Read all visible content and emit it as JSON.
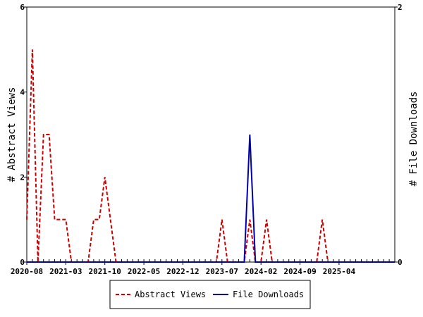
{
  "chart_data": {
    "type": "line",
    "title": "",
    "xlabel": "",
    "ylabel_left": "# Abstract Views",
    "ylabel_right": "# File Downloads",
    "x_tick_labels": [
      "2020-08",
      "2021-03",
      "2021-10",
      "2022-05",
      "2022-12",
      "2023-07",
      "2024-02",
      "2024-09",
      "2025-04"
    ],
    "xlim": [
      "2020-08",
      "2026-02"
    ],
    "ylim_left": [
      0,
      6
    ],
    "yticks_left": [
      0,
      2,
      4,
      6
    ],
    "ylim_right": [
      0,
      2
    ],
    "yticks_right": [
      0,
      2
    ],
    "grid": false,
    "legend_position": "bottom-center",
    "series": [
      {
        "name": "Abstract Views",
        "axis": "left",
        "color": "#cc0000",
        "dash": "dashed",
        "x": [
          "2020-08",
          "2020-09",
          "2020-10",
          "2020-11",
          "2020-12",
          "2021-01",
          "2021-02",
          "2021-03",
          "2021-04",
          "2021-05",
          "2021-06",
          "2021-07",
          "2021-08",
          "2021-09",
          "2021-10",
          "2021-11",
          "2021-12",
          "2022-01",
          "2022-02",
          "2022-03",
          "2022-04",
          "2022-05",
          "2022-06",
          "2022-07",
          "2022-08",
          "2022-09",
          "2022-10",
          "2022-11",
          "2022-12",
          "2023-01",
          "2023-02",
          "2023-03",
          "2023-04",
          "2023-05",
          "2023-06",
          "2023-07",
          "2023-08",
          "2023-09",
          "2023-10",
          "2023-11",
          "2023-12",
          "2024-01",
          "2024-02",
          "2024-03",
          "2024-04",
          "2024-05",
          "2024-06",
          "2024-07",
          "2024-08",
          "2024-09",
          "2024-10",
          "2024-11",
          "2024-12",
          "2025-01",
          "2025-02",
          "2025-03",
          "2025-04",
          "2025-05",
          "2025-06",
          "2025-07",
          "2025-08",
          "2025-09",
          "2025-10",
          "2025-11",
          "2025-12",
          "2026-01",
          "2026-02"
        ],
        "values": [
          1,
          5,
          0,
          3,
          3,
          1,
          1,
          1,
          0,
          0,
          0,
          0,
          1,
          1,
          2,
          1,
          0,
          0,
          0,
          0,
          0,
          0,
          0,
          0,
          0,
          0,
          0,
          0,
          0,
          0,
          0,
          0,
          0,
          0,
          0,
          1,
          0,
          0,
          0,
          0,
          1,
          0,
          0,
          1,
          0,
          0,
          0,
          0,
          0,
          0,
          0,
          0,
          0,
          1,
          0,
          0,
          0,
          0,
          0,
          0,
          0,
          0,
          0,
          0,
          0,
          0,
          0
        ]
      },
      {
        "name": "File Downloads",
        "axis": "right",
        "color": "#0000aa",
        "dash": "solid",
        "x": [
          "2020-08",
          "2020-09",
          "2020-10",
          "2020-11",
          "2020-12",
          "2021-01",
          "2021-02",
          "2021-03",
          "2021-04",
          "2021-05",
          "2021-06",
          "2021-07",
          "2021-08",
          "2021-09",
          "2021-10",
          "2021-11",
          "2021-12",
          "2022-01",
          "2022-02",
          "2022-03",
          "2022-04",
          "2022-05",
          "2022-06",
          "2022-07",
          "2022-08",
          "2022-09",
          "2022-10",
          "2022-11",
          "2022-12",
          "2023-01",
          "2023-02",
          "2023-03",
          "2023-04",
          "2023-05",
          "2023-06",
          "2023-07",
          "2023-08",
          "2023-09",
          "2023-10",
          "2023-11",
          "2023-12",
          "2024-01",
          "2024-02",
          "2024-03",
          "2024-04",
          "2024-05",
          "2024-06",
          "2024-07",
          "2024-08",
          "2024-09",
          "2024-10",
          "2024-11",
          "2024-12",
          "2025-01",
          "2025-02",
          "2025-03",
          "2025-04",
          "2025-05",
          "2025-06",
          "2025-07",
          "2025-08",
          "2025-09",
          "2025-10",
          "2025-11",
          "2025-12",
          "2026-01",
          "2026-02"
        ],
        "values": [
          0,
          0,
          0,
          0,
          0,
          0,
          0,
          0,
          0,
          0,
          0,
          0,
          0,
          0,
          0,
          0,
          0,
          0,
          0,
          0,
          0,
          0,
          0,
          0,
          0,
          0,
          0,
          0,
          0,
          0,
          0,
          0,
          0,
          0,
          0,
          0,
          0,
          0,
          0,
          0,
          1,
          0,
          0,
          0,
          0,
          0,
          0,
          0,
          0,
          0,
          0,
          0,
          0,
          0,
          0,
          0,
          0,
          0,
          0,
          0,
          0,
          0,
          0,
          0,
          0,
          0,
          0
        ]
      }
    ]
  }
}
